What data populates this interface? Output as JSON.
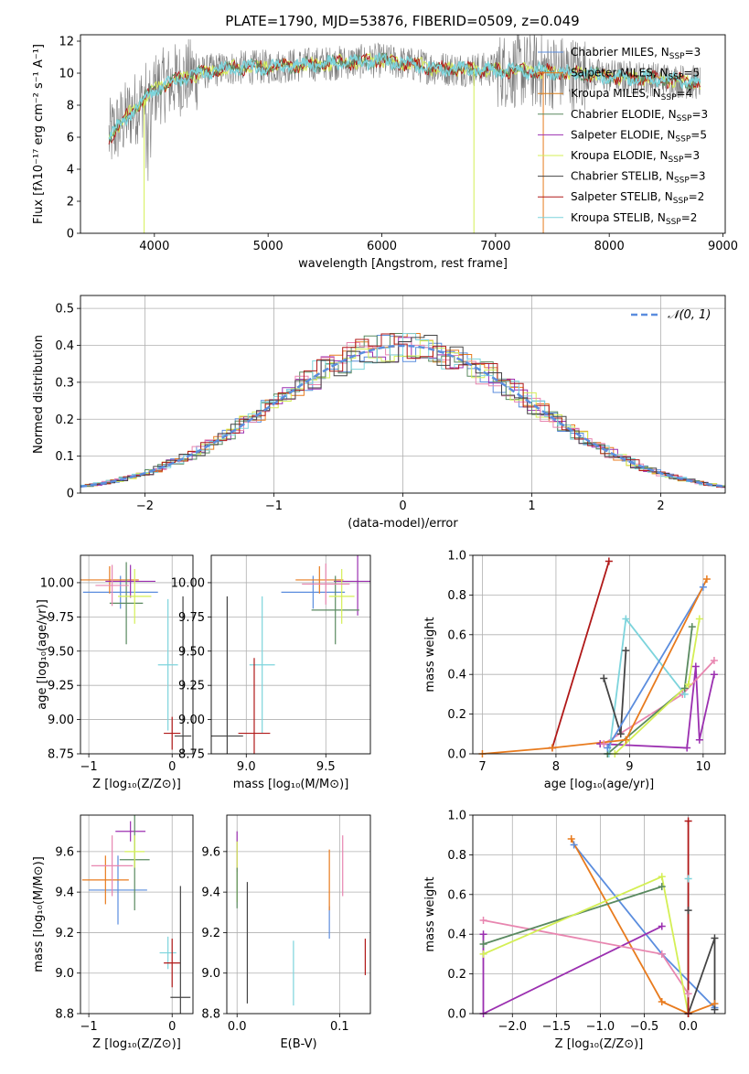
{
  "title": "PLATE=1790, MJD=53876, FIBERID=0509, z=0.049",
  "colors": {
    "chabrier_miles": "#5b8dde",
    "salpeter_miles": "#e87b1e",
    "kroupa_miles": "#d57f1e",
    "chabrier_elodie": "#5a8a60",
    "salpeter_elodie": "#9b2fb0",
    "kroupa_elodie": "#d4ef55",
    "chabrier_stelib": "#444444",
    "salpeter_stelib": "#b01818",
    "kroupa_stelib": "#7dd4dc",
    "pink": "#e886b0",
    "grey_spec": "#7a7a7a"
  },
  "legend_spectrum": [
    {
      "label": "Chabrier MILES, N",
      "sub": "SSP",
      "suffix": "=3",
      "color": "#5b8dde"
    },
    {
      "label": "Salpeter MILES, N",
      "sub": "SSP",
      "suffix": "=5",
      "color": "#e87b1e"
    },
    {
      "label": "Kroupa MILES, N",
      "sub": "SSP",
      "suffix": "=4",
      "color": "#d57f1e"
    },
    {
      "label": "Chabrier ELODIE, N",
      "sub": "SSP",
      "suffix": "=3",
      "color": "#5a8a60"
    },
    {
      "label": "Salpeter ELODIE, N",
      "sub": "SSP",
      "suffix": "=5",
      "color": "#9b2fb0"
    },
    {
      "label": "Kroupa ELODIE, N",
      "sub": "SSP",
      "suffix": "=3",
      "color": "#d4ef55"
    },
    {
      "label": "Chabrier STELIB, N",
      "sub": "SSP",
      "suffix": "=3",
      "color": "#444444"
    },
    {
      "label": "Salpeter STELIB, N",
      "sub": "SSP",
      "suffix": "=2",
      "color": "#b01818"
    },
    {
      "label": "Kroupa STELIB, N",
      "sub": "SSP",
      "suffix": "=2",
      "color": "#7dd4dc"
    }
  ],
  "chart_data": [
    {
      "id": "spectrum",
      "type": "line",
      "xlabel": "wavelength [Angstrom, rest frame]",
      "ylabel": "Flux [fλ10⁻¹⁷ erg cm⁻² s⁻¹ A⁻¹]",
      "xlim": [
        3350,
        9020
      ],
      "ylim": [
        0,
        12.4
      ],
      "xticks": [
        4000,
        5000,
        6000,
        7000,
        8000,
        9000
      ],
      "yticks": [
        0,
        2,
        4,
        6,
        8,
        10,
        12
      ],
      "data_range_x": [
        3600,
        8800
      ],
      "continuum": [
        [
          3600,
          6.0
        ],
        [
          3700,
          6.8
        ],
        [
          3800,
          7.6
        ],
        [
          3900,
          8.3
        ],
        [
          4000,
          9.0
        ],
        [
          4200,
          9.6
        ],
        [
          4400,
          10.0
        ],
        [
          4600,
          10.3
        ],
        [
          5000,
          10.4
        ],
        [
          5500,
          10.6
        ],
        [
          6000,
          10.8
        ],
        [
          6500,
          10.3
        ],
        [
          7000,
          10.2
        ],
        [
          7500,
          10.1
        ],
        [
          8000,
          9.8
        ],
        [
          8500,
          9.6
        ],
        [
          8800,
          9.4
        ]
      ]
    },
    {
      "id": "residuals",
      "type": "histogram",
      "xlabel": "(data-model)/error",
      "ylabel": "Normed distribution",
      "xlim": [
        -2.5,
        2.5
      ],
      "ylim": [
        0,
        0.535
      ],
      "xticks": [
        -2,
        -1,
        0,
        1,
        2
      ],
      "xtick_labels": [
        "−2",
        "−1",
        "0",
        "1",
        "2"
      ],
      "yticks": [
        0,
        0.1,
        0.2,
        0.3,
        0.4,
        0.5
      ],
      "legend": "𝒩(0, 1)",
      "curve": {
        "mu": 0,
        "sigma": 1,
        "color": "#5b8dde"
      }
    },
    {
      "id": "age_vs_Z",
      "type": "errorbar",
      "xlabel": "Z [log₁₀(Z/Z⊙)]",
      "ylabel": "age  [log₁₀(age/yr)]",
      "xlim": [
        -1.1,
        0.25
      ],
      "ylim": [
        8.75,
        10.2
      ],
      "xticks": [
        -1,
        0
      ],
      "xtick_labels": [
        "−1",
        "0"
      ],
      "yticks": [
        8.75,
        9.0,
        9.25,
        9.5,
        9.75,
        10.0
      ],
      "ytick_labels": [
        "8.75",
        "9.00",
        "9.25",
        "9.50",
        "9.75",
        "10.00"
      ],
      "points": [
        {
          "x": -0.62,
          "y": 9.93,
          "xerr": 0.45,
          "yerr": 0.12,
          "color": "#5b8dde"
        },
        {
          "x": -0.75,
          "y": 10.02,
          "xerr": 0.35,
          "yerr": 0.1,
          "color": "#e87b1e"
        },
        {
          "x": -0.5,
          "y": 10.01,
          "xerr": 0.3,
          "yerr": 0.12,
          "color": "#9b2fb0"
        },
        {
          "x": -0.55,
          "y": 9.85,
          "xerr": 0.2,
          "yerr": 0.3,
          "color": "#5a8a60"
        },
        {
          "x": -0.45,
          "y": 9.9,
          "xerr": 0.2,
          "yerr": 0.2,
          "color": "#d4ef55"
        },
        {
          "x": -0.72,
          "y": 9.98,
          "xerr": 0.2,
          "yerr": 0.15,
          "color": "#e886b0"
        },
        {
          "x": -0.05,
          "y": 9.4,
          "xerr": 0.12,
          "yerr": 0.48,
          "color": "#7dd4dc"
        },
        {
          "x": 0.0,
          "y": 8.9,
          "xerr": 0.1,
          "yerr": 0.12,
          "color": "#b01818"
        },
        {
          "x": 0.13,
          "y": 8.88,
          "xerr": 0.1,
          "yerr": 1.02,
          "color": "#444444"
        }
      ]
    },
    {
      "id": "age_vs_mass",
      "type": "errorbar",
      "xlabel": "mass [log₁₀(M/M⊙)]",
      "xlim": [
        8.78,
        9.78
      ],
      "ylim": [
        8.75,
        10.2
      ],
      "xticks": [
        9.0,
        9.5
      ],
      "xtick_labels": [
        "9.0",
        "9.5"
      ],
      "yticks": [
        8.75,
        9.0,
        9.25,
        9.5,
        9.75,
        10.0
      ],
      "ytick_labels": [
        "8.75",
        "9.00",
        "9.25",
        "9.50",
        "9.75",
        "10.00"
      ],
      "points": [
        {
          "x": 9.42,
          "y": 9.93,
          "xerr": 0.2,
          "yerr": 0.12,
          "color": "#5b8dde"
        },
        {
          "x": 9.46,
          "y": 10.02,
          "xerr": 0.15,
          "yerr": 0.1,
          "color": "#e87b1e"
        },
        {
          "x": 9.7,
          "y": 10.01,
          "xerr": 0.15,
          "yerr": 0.25,
          "color": "#9b2fb0"
        },
        {
          "x": 9.56,
          "y": 9.8,
          "xerr": 0.15,
          "yerr": 0.25,
          "color": "#5a8a60"
        },
        {
          "x": 9.6,
          "y": 9.9,
          "xerr": 0.08,
          "yerr": 0.2,
          "color": "#d4ef55"
        },
        {
          "x": 9.5,
          "y": 9.99,
          "xerr": 0.15,
          "yerr": 0.15,
          "color": "#e886b0"
        },
        {
          "x": 9.1,
          "y": 9.4,
          "xerr": 0.08,
          "yerr": 0.5,
          "color": "#7dd4dc"
        },
        {
          "x": 9.05,
          "y": 8.9,
          "xerr": 0.1,
          "yerr": 0.55,
          "color": "#b01818"
        },
        {
          "x": 8.88,
          "y": 8.88,
          "xerr": 0.1,
          "yerr": 1.02,
          "color": "#444444"
        }
      ]
    },
    {
      "id": "weight_vs_age",
      "type": "line",
      "xlabel": "age  [log₁₀(age/yr)]",
      "ylabel": "mass weight",
      "xlim": [
        6.87,
        10.3
      ],
      "ylim": [
        0,
        1.0
      ],
      "xticks": [
        7,
        8,
        9,
        10
      ],
      "yticks": [
        0,
        0.2,
        0.4,
        0.6,
        0.8,
        1.0
      ],
      "ytick_labels": [
        "0.0",
        "0.2",
        "0.4",
        "0.6",
        "0.8",
        "1.0"
      ],
      "series": [
        {
          "color": "#9b2fb0",
          "points": [
            [
              8.6,
              0.05
            ],
            [
              9.78,
              0.03
            ],
            [
              9.9,
              0.44
            ],
            [
              9.95,
              0.07
            ],
            [
              10.15,
              0.4
            ]
          ]
        },
        {
          "color": "#e886b0",
          "points": [
            [
              8.65,
              0.05
            ],
            [
              9.72,
              0.3
            ],
            [
              10.15,
              0.47
            ]
          ]
        },
        {
          "color": "#7dd4dc",
          "points": [
            [
              8.72,
              0.0
            ],
            [
              8.95,
              0.68
            ],
            [
              9.75,
              0.3
            ]
          ]
        },
        {
          "color": "#5a8a60",
          "points": [
            [
              8.7,
              0.0
            ],
            [
              9.75,
              0.33
            ],
            [
              9.85,
              0.64
            ]
          ]
        },
        {
          "color": "#d4ef55",
          "points": [
            [
              8.8,
              0.0
            ],
            [
              9.8,
              0.35
            ],
            [
              9.95,
              0.68
            ]
          ]
        },
        {
          "color": "#444444",
          "points": [
            [
              8.65,
              0.38
            ],
            [
              8.88,
              0.1
            ],
            [
              8.95,
              0.52
            ]
          ]
        },
        {
          "color": "#b01818",
          "points": [
            [
              7.95,
              0.03
            ],
            [
              8.72,
              0.97
            ]
          ]
        },
        {
          "color": "#5b8dde",
          "points": [
            [
              8.7,
              0.03
            ],
            [
              10.0,
              0.84
            ]
          ]
        },
        {
          "color": "#e87b1e",
          "points": [
            [
              7.0,
              0.0
            ],
            [
              7.95,
              0.03
            ],
            [
              8.95,
              0.07
            ],
            [
              10.05,
              0.88
            ]
          ]
        }
      ]
    },
    {
      "id": "mass_vs_Z",
      "type": "errorbar",
      "xlabel": "Z [log₁₀(Z/Z⊙)]",
      "ylabel": "mass [log₁₀(M/M⊙)]",
      "xlim": [
        -1.1,
        0.25
      ],
      "ylim": [
        8.8,
        9.78
      ],
      "xticks": [
        -1,
        0
      ],
      "xtick_labels": [
        "−1",
        "0"
      ],
      "yticks": [
        8.8,
        9.0,
        9.2,
        9.4,
        9.6
      ],
      "ytick_labels": [
        "8.8",
        "9.0",
        "9.2",
        "9.4",
        "9.6"
      ],
      "points": [
        {
          "x": -0.65,
          "y": 9.41,
          "xerr": 0.35,
          "yerr": 0.17,
          "color": "#5b8dde"
        },
        {
          "x": -0.8,
          "y": 9.46,
          "xerr": 0.28,
          "yerr": 0.12,
          "color": "#e87b1e"
        },
        {
          "x": -0.5,
          "y": 9.7,
          "xerr": 0.18,
          "yerr": 0.05,
          "color": "#9b2fb0"
        },
        {
          "x": -0.45,
          "y": 9.56,
          "xerr": 0.18,
          "yerr": 0.25,
          "color": "#5a8a60"
        },
        {
          "x": -0.45,
          "y": 9.6,
          "xerr": 0.12,
          "yerr": 0.08,
          "color": "#d4ef55"
        },
        {
          "x": -0.72,
          "y": 9.53,
          "xerr": 0.25,
          "yerr": 0.15,
          "color": "#e886b0"
        },
        {
          "x": -0.05,
          "y": 9.1,
          "xerr": 0.1,
          "yerr": 0.08,
          "color": "#7dd4dc"
        },
        {
          "x": 0.0,
          "y": 9.05,
          "xerr": 0.1,
          "yerr": 0.12,
          "color": "#b01818"
        },
        {
          "x": 0.1,
          "y": 8.88,
          "xerr": 0.12,
          "yerr": 0.55,
          "color": "#444444"
        }
      ]
    },
    {
      "id": "mass_vs_ebv",
      "type": "errorbar",
      "xlabel": "E(B-V)",
      "xlim": [
        -0.01,
        0.13
      ],
      "ylim": [
        8.8,
        9.78
      ],
      "xticks": [
        0.0,
        0.1
      ],
      "xtick_labels": [
        "0.0",
        "0.1"
      ],
      "yticks": [
        8.8,
        9.0,
        9.2,
        9.4,
        9.6
      ],
      "ytick_labels": [
        "8.8",
        "9.0",
        "9.2",
        "9.4",
        "9.6"
      ],
      "points": [
        {
          "x": 0.0,
          "y": 9.6,
          "xerr": 0,
          "yerr": 0.1,
          "color": "#9b2fb0"
        },
        {
          "x": 0.0,
          "y": 9.5,
          "xerr": 0,
          "yerr": 0.15,
          "color": "#d4ef55"
        },
        {
          "x": 0.0,
          "y": 9.42,
          "xerr": 0,
          "yerr": 0.1,
          "color": "#5a8a60"
        },
        {
          "x": 0.09,
          "y": 9.25,
          "xerr": 0,
          "yerr": 0.08,
          "color": "#5b8dde"
        },
        {
          "x": 0.09,
          "y": 9.46,
          "xerr": 0,
          "yerr": 0.15,
          "color": "#e87b1e"
        },
        {
          "x": 0.103,
          "y": 9.53,
          "xerr": 0,
          "yerr": 0.15,
          "color": "#e886b0"
        },
        {
          "x": 0.055,
          "y": 9.0,
          "xerr": 0,
          "yerr": 0.16,
          "color": "#7dd4dc"
        },
        {
          "x": 0.125,
          "y": 9.08,
          "xerr": 0,
          "yerr": 0.09,
          "color": "#b01818"
        },
        {
          "x": 0.01,
          "y": 9.15,
          "xerr": 0,
          "yerr": 0.3,
          "color": "#444444"
        }
      ]
    },
    {
      "id": "weight_vs_Z",
      "type": "line",
      "xlabel": "Z [log₁₀(Z/Z⊙)]",
      "ylabel": "mass weight",
      "xlim": [
        -2.45,
        0.42
      ],
      "ylim": [
        0,
        1.0
      ],
      "xticks": [
        -2.0,
        -1.5,
        -1.0,
        -0.5,
        0.0
      ],
      "xtick_labels": [
        "−2.0",
        "−1.5",
        "−1.0",
        "−0.5",
        "0.0"
      ],
      "yticks": [
        0,
        0.2,
        0.4,
        0.6,
        0.8,
        1.0
      ],
      "ytick_labels": [
        "0.0",
        "0.2",
        "0.4",
        "0.6",
        "0.8",
        "1.0"
      ],
      "series": [
        {
          "color": "#5b8dde",
          "points": [
            [
              -1.3,
              0.85
            ],
            [
              -0.3,
              0.3
            ],
            [
              0.3,
              0.03
            ]
          ]
        },
        {
          "color": "#e87b1e",
          "points": [
            [
              -1.33,
              0.88
            ],
            [
              -0.3,
              0.06
            ],
            [
              0.0,
              0.0
            ],
            [
              0.3,
              0.05
            ]
          ]
        },
        {
          "color": "#9b2fb0",
          "points": [
            [
              -2.33,
              0.4
            ],
            [
              -2.33,
              0.0
            ],
            [
              -0.3,
              0.44
            ]
          ]
        },
        {
          "color": "#e886b0",
          "points": [
            [
              -2.33,
              0.47
            ],
            [
              -0.3,
              0.3
            ],
            [
              0.0,
              0.1
            ]
          ]
        },
        {
          "color": "#5a8a60",
          "points": [
            [
              -2.33,
              0.35
            ],
            [
              -0.3,
              0.64
            ]
          ]
        },
        {
          "color": "#d4ef55",
          "points": [
            [
              -2.33,
              0.3
            ],
            [
              -0.3,
              0.69
            ],
            [
              0.0,
              0.0
            ]
          ]
        },
        {
          "color": "#7dd4dc",
          "points": [
            [
              0.0,
              0.0
            ],
            [
              0.0,
              0.68
            ]
          ]
        },
        {
          "color": "#444444",
          "points": [
            [
              0.0,
              0.52
            ],
            [
              0.0,
              0.0
            ],
            [
              0.3,
              0.38
            ],
            [
              0.3,
              0.02
            ]
          ]
        },
        {
          "color": "#b01818",
          "points": [
            [
              0.0,
              0.97
            ],
            [
              0.0,
              0.0
            ]
          ]
        }
      ]
    }
  ]
}
